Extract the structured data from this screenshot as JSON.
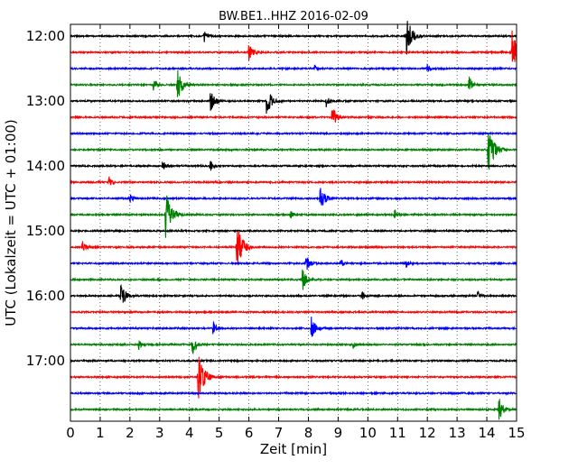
{
  "chart_data": {
    "type": "line",
    "title": "BW.BE1..HHZ 2016-02-09",
    "xlabel": "Zeit  [min]",
    "ylabel": "UTC (Lokalzeit = UTC + 01:00)",
    "xlim": [
      0,
      15
    ],
    "xticks": [
      "0",
      "1",
      "2",
      "3",
      "4",
      "5",
      "6",
      "7",
      "8",
      "9",
      "10",
      "11",
      "12",
      "13",
      "14",
      "15"
    ],
    "yticks": [
      "12:00",
      "13:00",
      "14:00",
      "15:00",
      "16:00",
      "17:00"
    ],
    "grid": true,
    "trace_interval_min": 15,
    "trace_colors": [
      "#000000",
      "#ff0000",
      "#0000ff",
      "#008000"
    ],
    "traces": [
      {
        "start": "12:00",
        "events": [
          [
            4.5,
            0.25
          ],
          [
            11.3,
            0.9
          ]
        ]
      },
      {
        "start": "12:15",
        "events": [
          [
            6.0,
            0.45
          ],
          [
            14.85,
            1.0
          ]
        ]
      },
      {
        "start": "12:30",
        "events": [
          [
            8.2,
            0.15
          ],
          [
            12.0,
            0.2
          ]
        ]
      },
      {
        "start": "12:45",
        "events": [
          [
            2.8,
            0.3
          ],
          [
            3.6,
            0.7
          ],
          [
            13.4,
            0.4
          ]
        ]
      },
      {
        "start": "13:00",
        "events": [
          [
            4.7,
            0.55
          ],
          [
            6.6,
            0.65
          ],
          [
            8.6,
            0.25
          ]
        ]
      },
      {
        "start": "13:15",
        "events": [
          [
            8.8,
            0.55
          ]
        ]
      },
      {
        "start": "13:30",
        "events": []
      },
      {
        "start": "13:45",
        "events": [
          [
            14.05,
            1.0
          ]
        ]
      },
      {
        "start": "14:00",
        "events": [
          [
            3.1,
            0.3
          ],
          [
            4.7,
            0.25
          ]
        ]
      },
      {
        "start": "14:15",
        "events": [
          [
            1.3,
            0.25
          ]
        ]
      },
      {
        "start": "14:30",
        "events": [
          [
            2.0,
            0.2
          ],
          [
            8.4,
            0.6
          ]
        ]
      },
      {
        "start": "14:45",
        "events": [
          [
            3.2,
            1.0
          ],
          [
            7.4,
            0.2
          ],
          [
            10.9,
            0.2
          ]
        ]
      },
      {
        "start": "15:00",
        "events": []
      },
      {
        "start": "15:15",
        "events": [
          [
            0.4,
            0.3
          ],
          [
            5.6,
            1.0
          ]
        ]
      },
      {
        "start": "15:30",
        "events": [
          [
            7.9,
            0.45
          ],
          [
            9.1,
            0.2
          ],
          [
            11.3,
            0.2
          ]
        ]
      },
      {
        "start": "15:45",
        "events": [
          [
            7.8,
            0.5
          ]
        ]
      },
      {
        "start": "16:00",
        "events": [
          [
            1.7,
            0.6
          ],
          [
            9.8,
            0.2
          ],
          [
            13.7,
            0.2
          ]
        ]
      },
      {
        "start": "16:15",
        "events": []
      },
      {
        "start": "16:30",
        "events": [
          [
            4.8,
            0.3
          ],
          [
            8.1,
            0.55
          ]
        ]
      },
      {
        "start": "16:45",
        "events": [
          [
            2.3,
            0.2
          ],
          [
            4.1,
            0.5
          ],
          [
            9.5,
            0.2
          ]
        ]
      },
      {
        "start": "17:00",
        "events": []
      },
      {
        "start": "17:15",
        "events": [
          [
            4.3,
            1.0
          ]
        ]
      },
      {
        "start": "17:30",
        "events": []
      },
      {
        "start": "17:45",
        "events": [
          [
            14.4,
            0.55
          ]
        ]
      }
    ]
  }
}
